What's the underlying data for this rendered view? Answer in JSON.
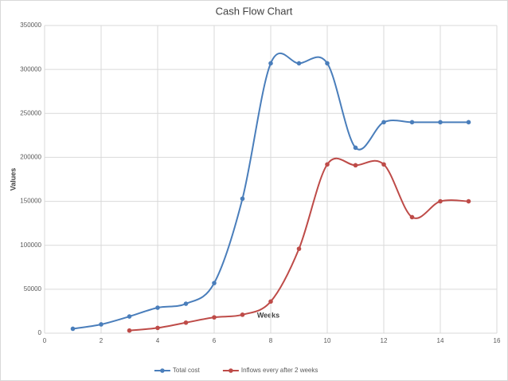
{
  "chart_data": {
    "type": "line",
    "title": "Cash Flow Chart",
    "x_label": "Weeks",
    "y_label": "Values",
    "x": [
      1,
      2,
      3,
      4,
      5,
      6,
      7,
      8,
      9,
      10,
      11,
      12,
      13,
      14,
      15
    ],
    "series": [
      {
        "name": "Total cost",
        "color": "#4a7ebb",
        "values": [
          5000,
          10000,
          19000,
          29000,
          33500,
          57000,
          153000,
          307000,
          307000,
          307000,
          211000,
          240000,
          240000,
          240000,
          240000
        ]
      },
      {
        "name": "Inflows every after 2 weeks",
        "color": "#be4b48",
        "values": [
          null,
          null,
          3000,
          6000,
          12000,
          18000,
          21000,
          36000,
          96000,
          192000,
          191000,
          192000,
          132000,
          150000,
          150000
        ]
      }
    ],
    "xlim": [
      0,
      16
    ],
    "xticks": [
      0,
      2,
      4,
      6,
      8,
      10,
      12,
      14,
      16
    ],
    "ylim": [
      0,
      350000
    ],
    "yticks": [
      0,
      50000,
      100000,
      150000,
      200000,
      250000,
      300000,
      350000
    ],
    "grid": true,
    "smooth": true,
    "legend": "bottom"
  }
}
